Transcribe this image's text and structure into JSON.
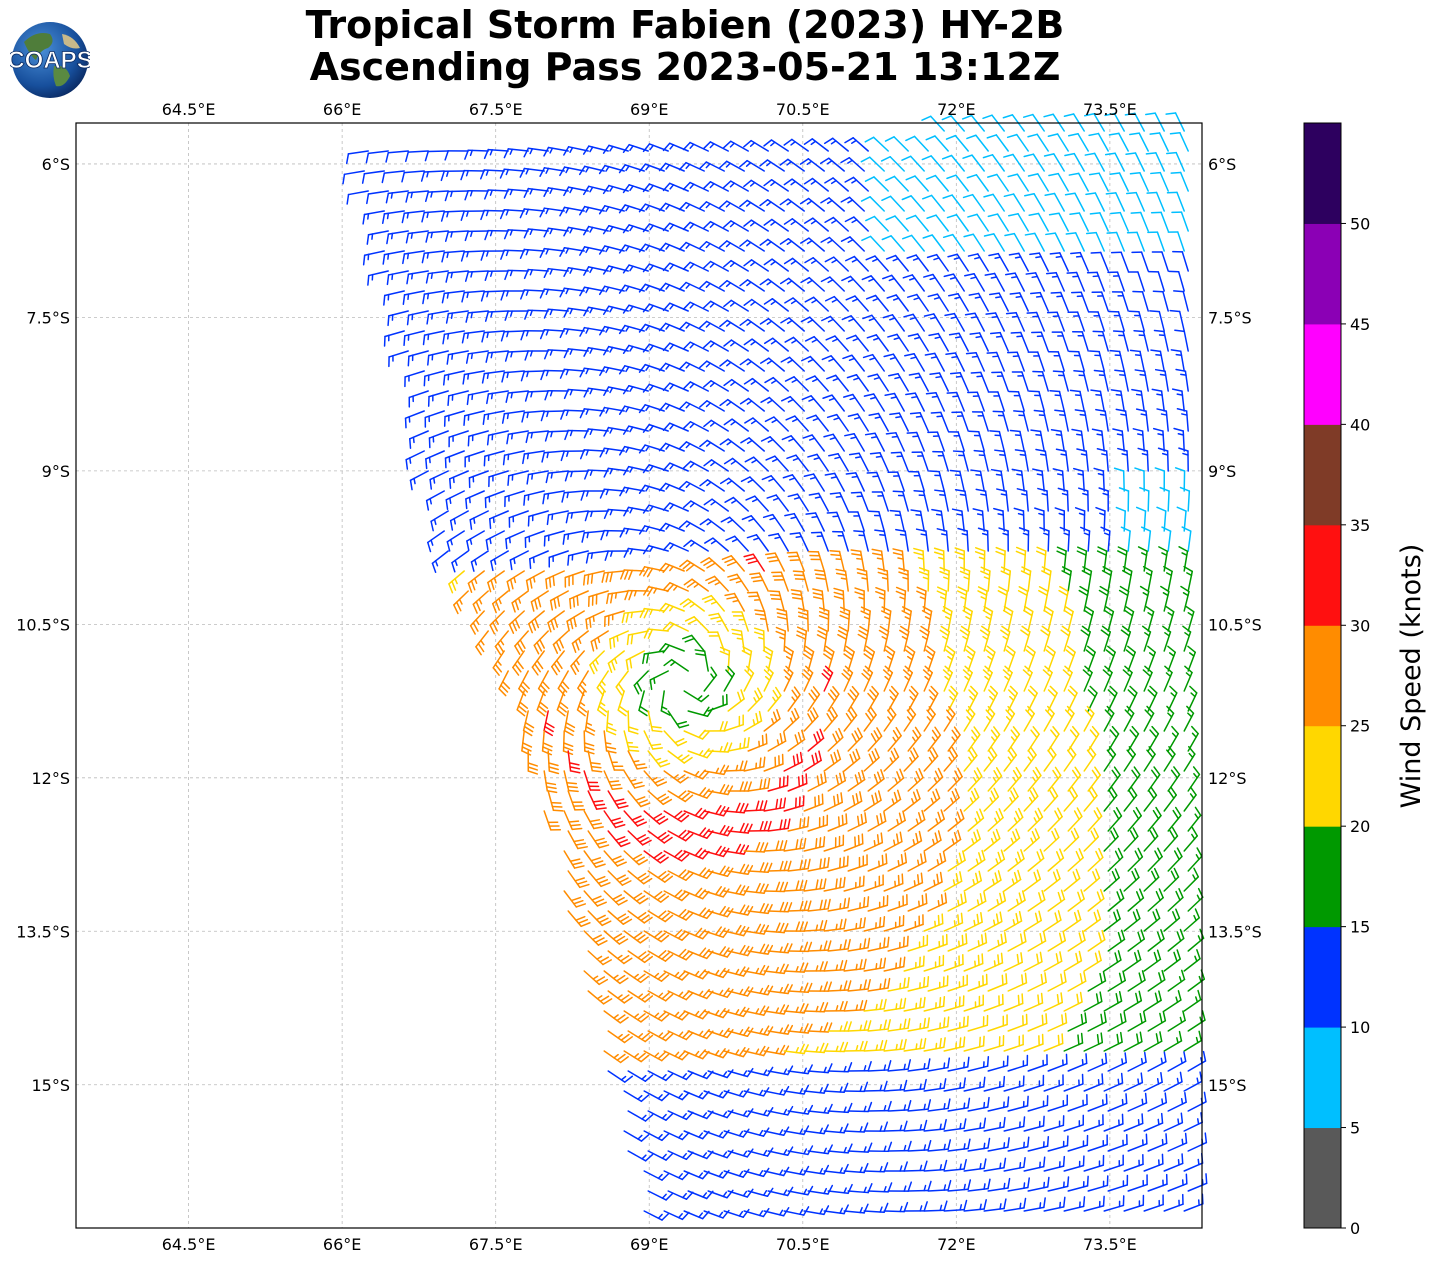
{
  "title": {
    "line1": "Tropical Storm Fabien (2023) HY-2B",
    "line2": "Ascending Pass 2023-05-21 13:12Z"
  },
  "logo": {
    "text": "COAPS"
  },
  "map": {
    "lon_ticks": [
      "64.5°E",
      "66°E",
      "67.5°E",
      "69°E",
      "70.5°E",
      "72°E",
      "73.5°E"
    ],
    "lat_ticks": [
      "6°S",
      "7.5°S",
      "9°S",
      "10.5°S",
      "12°S",
      "13.5°S",
      "15°S"
    ],
    "lon_range": [
      63.4,
      74.4
    ],
    "lat_range": [
      -16.4,
      -5.6
    ],
    "grid": true,
    "storm_center": {
      "lon": 69.35,
      "lat": -11.1
    },
    "swath_boundary": [
      [
        66.1,
        -5.85
      ],
      [
        74.4,
        -5.6
      ],
      [
        74.4,
        -16.4
      ],
      [
        68.9,
        -16.4
      ],
      [
        67.9,
        -12.0
      ],
      [
        67.35,
        -10.5
      ],
      [
        66.9,
        -9.7
      ],
      [
        66.65,
        -8.0
      ],
      [
        66.4,
        -7.0
      ]
    ]
  },
  "colorbar": {
    "label": "Wind Speed (knots)",
    "ticks": [
      "0",
      "5",
      "10",
      "15",
      "20",
      "25",
      "30",
      "35",
      "40",
      "45",
      "50"
    ],
    "colors": [
      "#595959",
      "#00bfff",
      "#0033ff",
      "#009900",
      "#ffd700",
      "#ff8c00",
      "#ff1010",
      "#7f3b27",
      "#ff00ff",
      "#8b00b5",
      "#2d005f"
    ]
  }
}
